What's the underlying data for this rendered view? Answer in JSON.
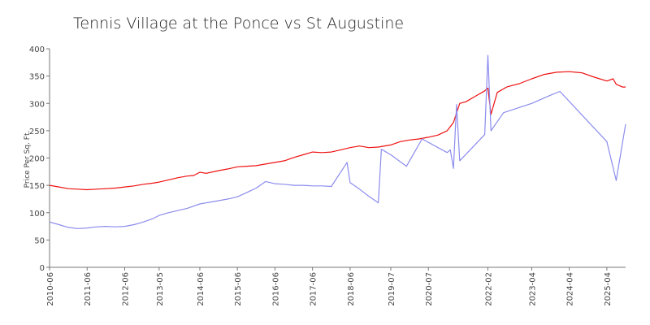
{
  "chart_data": {
    "type": "line",
    "title": "Tennis Village at the Ponce vs St Augustine",
    "xlabel": "",
    "ylabel": "Price Per Sq. Ft.",
    "ylim": [
      0,
      400
    ],
    "yticks": [
      0,
      50,
      100,
      150,
      200,
      250,
      300,
      350,
      400
    ],
    "xlim": [
      "2010-06",
      "2025-10"
    ],
    "xticks": [
      "2010-06",
      "2011-06",
      "2012-06",
      "2013-05",
      "2014-06",
      "2015-06",
      "2016-06",
      "2017-06",
      "2018-06",
      "2019-07",
      "2020-07",
      "2022-02",
      "2023-04",
      "2024-04",
      "2025-04"
    ],
    "grid": false,
    "legend": "none",
    "series": [
      {
        "color": "#ee1111",
        "points": [
          [
            "2010-06",
            150
          ],
          [
            "2010-09",
            147
          ],
          [
            "2010-12",
            144
          ],
          [
            "2011-03",
            143
          ],
          [
            "2011-06",
            142
          ],
          [
            "2011-09",
            143
          ],
          [
            "2011-12",
            144
          ],
          [
            "2012-03",
            145
          ],
          [
            "2012-06",
            147
          ],
          [
            "2012-09",
            149
          ],
          [
            "2012-12",
            152
          ],
          [
            "2013-03",
            154
          ],
          [
            "2013-05",
            156
          ],
          [
            "2013-08",
            160
          ],
          [
            "2013-11",
            164
          ],
          [
            "2014-02",
            167
          ],
          [
            "2014-04",
            168
          ],
          [
            "2014-06",
            174
          ],
          [
            "2014-08",
            172
          ],
          [
            "2014-12",
            177
          ],
          [
            "2015-03",
            180
          ],
          [
            "2015-06",
            184
          ],
          [
            "2015-09",
            185
          ],
          [
            "2015-12",
            186
          ],
          [
            "2016-03",
            189
          ],
          [
            "2016-06",
            192
          ],
          [
            "2016-09",
            195
          ],
          [
            "2016-12",
            201
          ],
          [
            "2017-03",
            206
          ],
          [
            "2017-06",
            211
          ],
          [
            "2017-09",
            210
          ],
          [
            "2017-12",
            211
          ],
          [
            "2018-03",
            215
          ],
          [
            "2018-06",
            219
          ],
          [
            "2018-09",
            222
          ],
          [
            "2018-12",
            219
          ],
          [
            "2019-03",
            220
          ],
          [
            "2019-07",
            224
          ],
          [
            "2019-10",
            230
          ],
          [
            "2020-01",
            233
          ],
          [
            "2020-04",
            235
          ],
          [
            "2020-07",
            238
          ],
          [
            "2020-10",
            242
          ],
          [
            "2021-01",
            250
          ],
          [
            "2021-03",
            265
          ],
          [
            "2021-05",
            300
          ],
          [
            "2021-07",
            303
          ],
          [
            "2021-10",
            313
          ],
          [
            "2022-01",
            323
          ],
          [
            "2022-02",
            328
          ],
          [
            "2022-03",
            280
          ],
          [
            "2022-05",
            320
          ],
          [
            "2022-08",
            330
          ],
          [
            "2022-12",
            336
          ],
          [
            "2023-04",
            345
          ],
          [
            "2023-08",
            353
          ],
          [
            "2023-12",
            357
          ],
          [
            "2024-04",
            358
          ],
          [
            "2024-08",
            356
          ],
          [
            "2024-12",
            348
          ],
          [
            "2025-04",
            341
          ],
          [
            "2025-06",
            345
          ],
          [
            "2025-07",
            335
          ],
          [
            "2025-09",
            330
          ],
          [
            "2025-10",
            330
          ]
        ]
      },
      {
        "color": "#8c8cee",
        "points": [
          [
            "2010-06",
            83
          ],
          [
            "2010-09",
            78
          ],
          [
            "2010-12",
            73
          ],
          [
            "2011-03",
            71
          ],
          [
            "2011-06",
            72
          ],
          [
            "2011-09",
            74
          ],
          [
            "2011-12",
            75
          ],
          [
            "2012-03",
            74
          ],
          [
            "2012-06",
            75
          ],
          [
            "2012-09",
            78
          ],
          [
            "2012-12",
            83
          ],
          [
            "2013-03",
            89
          ],
          [
            "2013-05",
            95
          ],
          [
            "2013-08",
            100
          ],
          [
            "2013-11",
            104
          ],
          [
            "2014-02",
            108
          ],
          [
            "2014-06",
            116
          ],
          [
            "2014-09",
            119
          ],
          [
            "2014-12",
            122
          ],
          [
            "2015-03",
            125
          ],
          [
            "2015-06",
            129
          ],
          [
            "2015-09",
            137
          ],
          [
            "2015-12",
            145
          ],
          [
            "2016-03",
            157
          ],
          [
            "2016-06",
            153
          ],
          [
            "2016-09",
            152
          ],
          [
            "2016-12",
            150
          ],
          [
            "2017-03",
            150
          ],
          [
            "2017-06",
            149
          ],
          [
            "2017-09",
            149
          ],
          [
            "2017-12",
            148
          ],
          [
            "2018-05",
            192
          ],
          [
            "2018-06",
            155
          ],
          [
            "2018-09",
            143
          ],
          [
            "2018-12",
            130
          ],
          [
            "2019-03",
            118
          ],
          [
            "2019-04",
            216
          ],
          [
            "2019-07",
            206
          ],
          [
            "2019-12",
            185
          ],
          [
            "2020-05",
            235
          ],
          [
            "2021-01",
            210
          ],
          [
            "2021-02",
            215
          ],
          [
            "2021-03",
            181
          ],
          [
            "2021-04",
            298
          ],
          [
            "2021-05",
            195
          ],
          [
            "2022-01",
            243
          ],
          [
            "2022-02",
            388
          ],
          [
            "2022-03",
            250
          ],
          [
            "2022-07",
            283
          ],
          [
            "2023-04",
            300
          ],
          [
            "2023-10",
            315
          ],
          [
            "2024-01",
            322
          ],
          [
            "2025-04",
            230
          ],
          [
            "2025-07",
            159
          ],
          [
            "2025-10",
            262
          ]
        ]
      }
    ]
  }
}
